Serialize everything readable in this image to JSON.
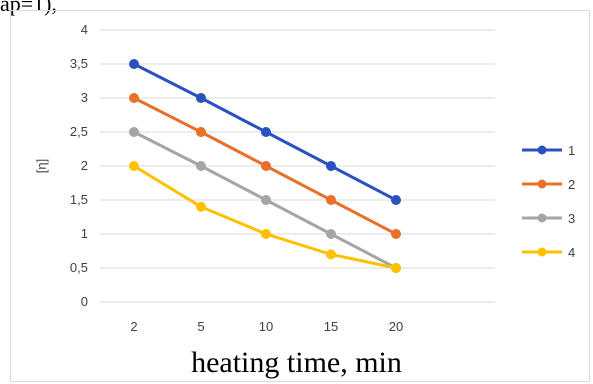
{
  "header_text": "ap=1),",
  "chart_data": {
    "type": "line",
    "categories": [
      "2",
      "5",
      "10",
      "15",
      "20"
    ],
    "series": [
      {
        "name": "1",
        "values": [
          3.5,
          3.0,
          2.5,
          2.0,
          1.5
        ],
        "color": "#2a52be"
      },
      {
        "name": "2",
        "values": [
          3.0,
          2.5,
          2.0,
          1.5,
          1.0
        ],
        "color": "#e8702a"
      },
      {
        "name": "3",
        "values": [
          2.5,
          2.0,
          1.5,
          1.0,
          0.5
        ],
        "color": "#a5a5a5"
      },
      {
        "name": "4",
        "values": [
          2.0,
          1.4,
          1.0,
          0.7,
          0.5
        ],
        "color": "#ffc000"
      }
    ],
    "title": "",
    "xlabel": "heating time, min",
    "ylabel": "[η]",
    "ylim": [
      0,
      4
    ],
    "yticks": [
      "0",
      "0,5",
      "1",
      "1,5",
      "2",
      "2,5",
      "3",
      "3,5",
      "4"
    ],
    "grid": true,
    "legend_position": "right"
  }
}
